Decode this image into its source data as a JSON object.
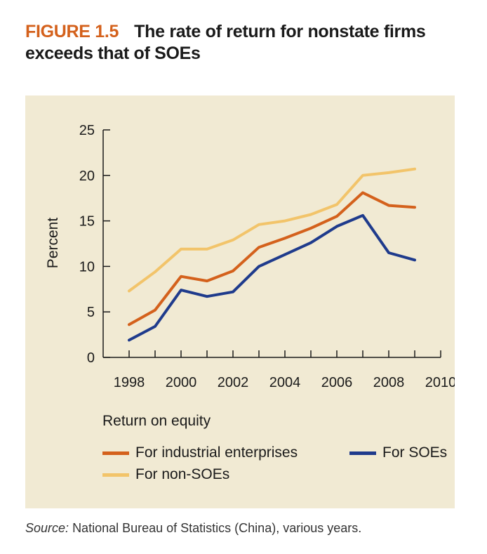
{
  "figure": {
    "label": "FIGURE 1.5",
    "title": "The rate of return for nonstate firms exceeds that of SOEs"
  },
  "legend": {
    "heading": "Return on equity"
  },
  "source": {
    "prefix": "Source:",
    "text": "National Bureau of Statistics (China), various years."
  },
  "colors": {
    "panel_background": "#f1ead3",
    "title_accent": "#d4611c",
    "industrial": "#d4611c",
    "soe": "#1f3b8c",
    "non_soe": "#f2c46a"
  },
  "chart_data": {
    "type": "line",
    "title": "The rate of return for nonstate firms exceeds that of SOEs",
    "xlabel": "",
    "ylabel": "Percent",
    "x": [
      1998,
      1999,
      2000,
      2001,
      2002,
      2003,
      2004,
      2005,
      2006,
      2007,
      2008,
      2009
    ],
    "xlim": [
      1997,
      2010
    ],
    "ylim": [
      0,
      25
    ],
    "x_ticks": [
      1998,
      2000,
      2002,
      2004,
      2006,
      2008,
      2010
    ],
    "y_ticks": [
      0,
      5,
      10,
      15,
      20,
      25
    ],
    "series": [
      {
        "name": "For industrial enterprises",
        "color": "#d4611c",
        "values": [
          3.6,
          5.2,
          8.9,
          8.4,
          9.5,
          12.1,
          13.1,
          14.2,
          15.5,
          18.1,
          16.7,
          16.5
        ]
      },
      {
        "name": "For SOEs",
        "color": "#1f3b8c",
        "values": [
          1.9,
          3.4,
          7.4,
          6.7,
          7.2,
          10.0,
          11.3,
          12.6,
          14.4,
          15.6,
          11.5,
          10.7
        ]
      },
      {
        "name": "For non-SOEs",
        "color": "#f2c46a",
        "values": [
          7.3,
          9.4,
          11.9,
          11.9,
          12.9,
          14.6,
          15.0,
          15.7,
          16.8,
          20.0,
          20.3,
          20.7
        ]
      }
    ],
    "grid": false,
    "legend_position": "bottom"
  }
}
